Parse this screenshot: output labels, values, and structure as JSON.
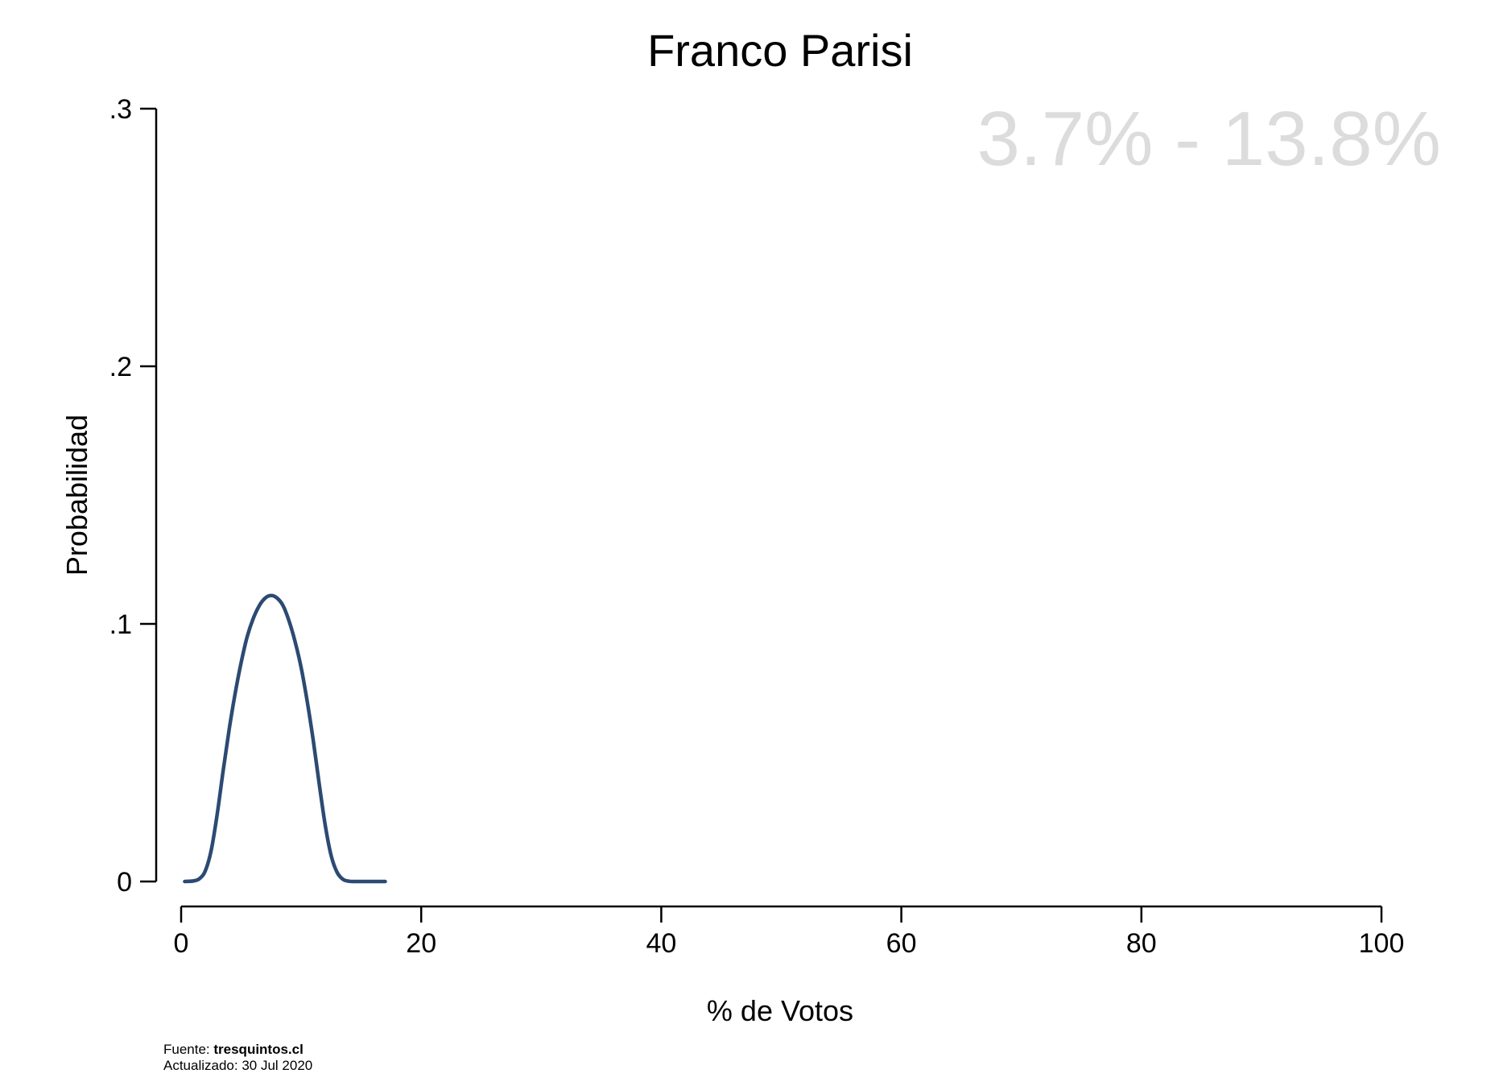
{
  "chart_data": {
    "type": "line",
    "title": "Franco Parisi",
    "xlabel": "% de Votos",
    "ylabel": "Probabilidad",
    "xlim": [
      0,
      100
    ],
    "ylim": [
      0,
      0.3
    ],
    "x_ticks": [
      0,
      20,
      40,
      60,
      80,
      100
    ],
    "x_tick_labels": [
      "0",
      "20",
      "40",
      "60",
      "80",
      "100"
    ],
    "y_ticks": [
      0,
      0.1,
      0.2,
      0.3
    ],
    "y_tick_labels": [
      "0",
      ".1",
      ".2",
      ".3"
    ],
    "grid": false,
    "interval_label": "3.7% - 13.8%",
    "series": [
      {
        "color": "#2c4a72",
        "x": [
          0.3,
          1.0,
          1.5,
          2.0,
          2.5,
          3.0,
          3.5,
          4.0,
          4.5,
          5.0,
          5.5,
          6.0,
          6.5,
          7.0,
          7.5,
          8.0,
          8.5,
          9.0,
          9.5,
          10.0,
          10.5,
          11.0,
          11.5,
          12.0,
          12.5,
          13.0,
          13.5,
          14.0,
          14.5,
          15.0,
          15.5,
          16.0,
          16.5,
          17.0
        ],
        "y": [
          0.0,
          0.0002,
          0.001,
          0.004,
          0.012,
          0.026,
          0.043,
          0.059,
          0.073,
          0.085,
          0.095,
          0.102,
          0.107,
          0.11,
          0.111,
          0.11,
          0.107,
          0.101,
          0.093,
          0.083,
          0.07,
          0.055,
          0.038,
          0.022,
          0.01,
          0.0035,
          0.0008,
          0.0001,
          0.0,
          0.0,
          0.0,
          0.0,
          0.0,
          0.0
        ]
      }
    ]
  },
  "footer": {
    "source_prefix": "Fuente: ",
    "source_name": "tresquintos.cl",
    "updated": "Actualizado: 30 Jul 2020"
  }
}
